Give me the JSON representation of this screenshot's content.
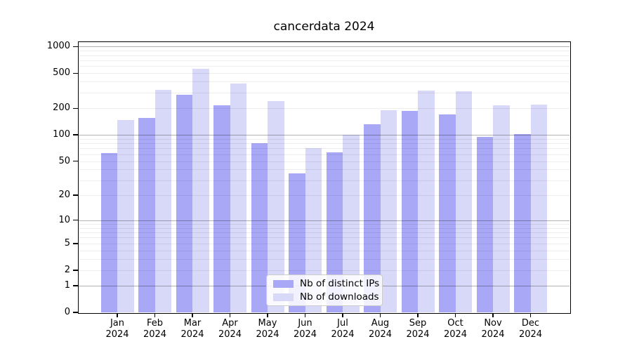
{
  "figure": {
    "title": "cancerdata 2024",
    "background": "#ffffff"
  },
  "legend": {
    "entries": [
      {
        "label": "Nb of distinct IPs",
        "color": "#a8a8f6"
      },
      {
        "label": "Nb of downloads",
        "color": "#d8d8f8"
      }
    ]
  },
  "chart_data": {
    "type": "bar",
    "title": "cancerdata 2024",
    "categories": [
      "Jan",
      "Feb",
      "Mar",
      "Apr",
      "May",
      "Jun",
      "Jul",
      "Aug",
      "Sep",
      "Oct",
      "Nov",
      "Dec"
    ],
    "year": "2024",
    "series": [
      {
        "name": "Nb of distinct IPs",
        "color": "#a8a8f6",
        "values": [
          62,
          156,
          287,
          216,
          80,
          36,
          63,
          132,
          187,
          172,
          95,
          102
        ]
      },
      {
        "name": "Nb of downloads",
        "color": "#d8d8f8",
        "values": [
          147,
          324,
          565,
          385,
          241,
          70,
          101,
          191,
          318,
          312,
          216,
          220
        ]
      }
    ],
    "y_axis": {
      "scale": "log10(1+value)",
      "tick_values": [
        0,
        1,
        2,
        5,
        10,
        20,
        50,
        100,
        200,
        500,
        1000
      ],
      "tick_labels": [
        "0",
        "1",
        "2",
        "5",
        "10",
        "20",
        "50",
        "100",
        "200",
        "500",
        "1000"
      ],
      "major_grid_values": [
        1,
        10,
        100,
        1000
      ],
      "minor_grid_values": [
        2,
        3,
        4,
        5,
        6,
        7,
        8,
        9,
        20,
        30,
        40,
        50,
        60,
        70,
        80,
        90,
        200,
        300,
        400,
        500,
        600,
        700,
        800,
        900
      ]
    },
    "ylim": [
      0,
      1120
    ],
    "grid": true,
    "legend_position": "bottom-center-inside"
  }
}
